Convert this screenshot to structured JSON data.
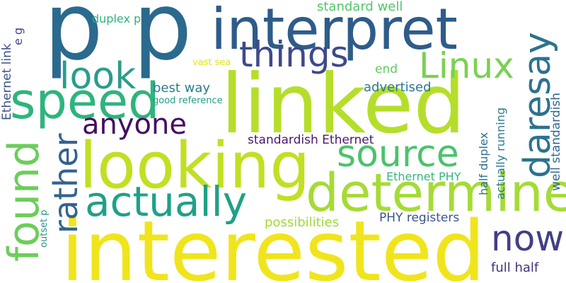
{
  "words": [
    {
      "text": "p p",
      "color": "#2a6a8e"
    },
    {
      "text": "interpret",
      "color": "#2e5c8a"
    },
    {
      "text": "linked",
      "color": "#b5de2b"
    },
    {
      "text": "interested",
      "color": "#f0e51c"
    },
    {
      "text": "looking",
      "color": "#c2df23"
    },
    {
      "text": "determine",
      "color": "#a5db36"
    },
    {
      "text": "speed",
      "color": "#2fb47c"
    },
    {
      "text": "actually",
      "color": "#1fa187"
    },
    {
      "text": "source",
      "color": "#4cc26c"
    },
    {
      "text": "things",
      "color": "#3e4a89"
    },
    {
      "text": "Linux",
      "color": "#7ad151"
    },
    {
      "text": "look",
      "color": "#2a9d8a"
    },
    {
      "text": "anyone",
      "color": "#440f5e"
    },
    {
      "text": "now",
      "color": "#433e85"
    },
    {
      "text": "found",
      "color": "#6ccd5a"
    },
    {
      "text": "rather",
      "color": "#33638d"
    },
    {
      "text": "daresay",
      "color": "#2c728e"
    },
    {
      "text": "standard well",
      "color": "#52c569"
    },
    {
      "text": "duplex p",
      "color": "#2fb47c"
    },
    {
      "text": "best way",
      "color": "#287d8e"
    },
    {
      "text": "good reference",
      "color": "#1f9e89"
    },
    {
      "text": "vast sea",
      "color": "#e2e418"
    },
    {
      "text": "end",
      "color": "#5ec962"
    },
    {
      "text": "advertised",
      "color": "#2a788e"
    },
    {
      "text": "standardish Ethernet",
      "color": "#48186a"
    },
    {
      "text": "Ethernet PHY",
      "color": "#35b779"
    },
    {
      "text": "possibilities",
      "color": "#a0da39"
    },
    {
      "text": "PHY registers",
      "color": "#3b528b"
    },
    {
      "text": "full half",
      "color": "#46327e"
    },
    {
      "text": "half duplex",
      "color": "#2c728e"
    },
    {
      "text": "actually running",
      "color": "#2a788e"
    },
    {
      "text": "well standardish",
      "color": "#31688e"
    },
    {
      "text": "Ethernet link",
      "color": "#3b528b"
    },
    {
      "text": "e g",
      "color": "#414487"
    },
    {
      "text": "outset p",
      "color": "#21918c"
    }
  ]
}
